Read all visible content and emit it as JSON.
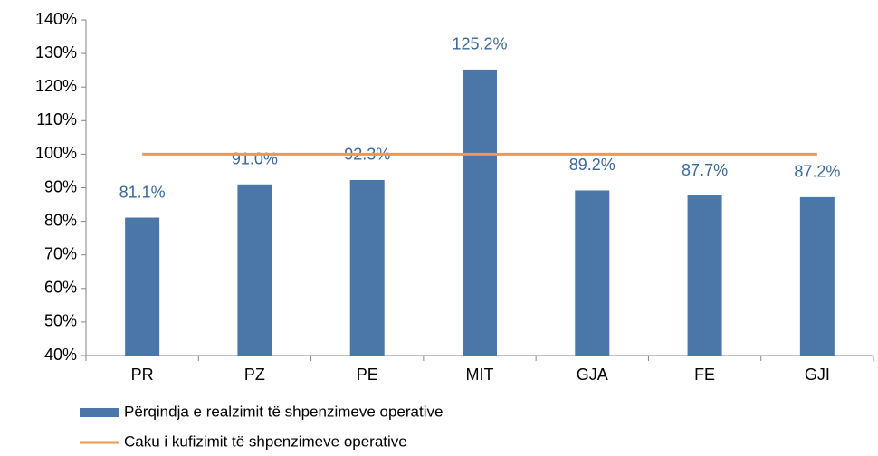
{
  "chart_data": {
    "type": "bar",
    "categories": [
      "PR",
      "PZ",
      "PE",
      "MIT",
      "GJA",
      "FE",
      "GJI"
    ],
    "series": [
      {
        "name": "Përqindja e realzimit të shpenzimeve operative",
        "type": "bar",
        "color": "#4a76a8",
        "values": [
          81.1,
          91.0,
          92.3,
          125.2,
          89.2,
          87.7,
          87.2
        ],
        "value_labels": [
          "81.1%",
          "91.0%",
          "92.3%",
          "125.2%",
          "89.2%",
          "87.7%",
          "87.2%"
        ]
      },
      {
        "name": "Caku i kufizimit të shpenzimeve operative",
        "type": "line",
        "color": "#f79646",
        "values": [
          100,
          100,
          100,
          100,
          100,
          100,
          100
        ]
      }
    ],
    "ylim": [
      40,
      140
    ],
    "yticks": [
      {
        "value": 40,
        "label": "40%"
      },
      {
        "value": 50,
        "label": "50%"
      },
      {
        "value": 60,
        "label": "60%"
      },
      {
        "value": 70,
        "label": "70%"
      },
      {
        "value": 80,
        "label": "80%"
      },
      {
        "value": 90,
        "label": "90%"
      },
      {
        "value": 100,
        "label": "100%"
      },
      {
        "value": 110,
        "label": "110%"
      },
      {
        "value": 120,
        "label": "120%"
      },
      {
        "value": 130,
        "label": "130%"
      },
      {
        "value": 140,
        "label": "140%"
      }
    ],
    "grid": false,
    "legend": "bottom"
  }
}
